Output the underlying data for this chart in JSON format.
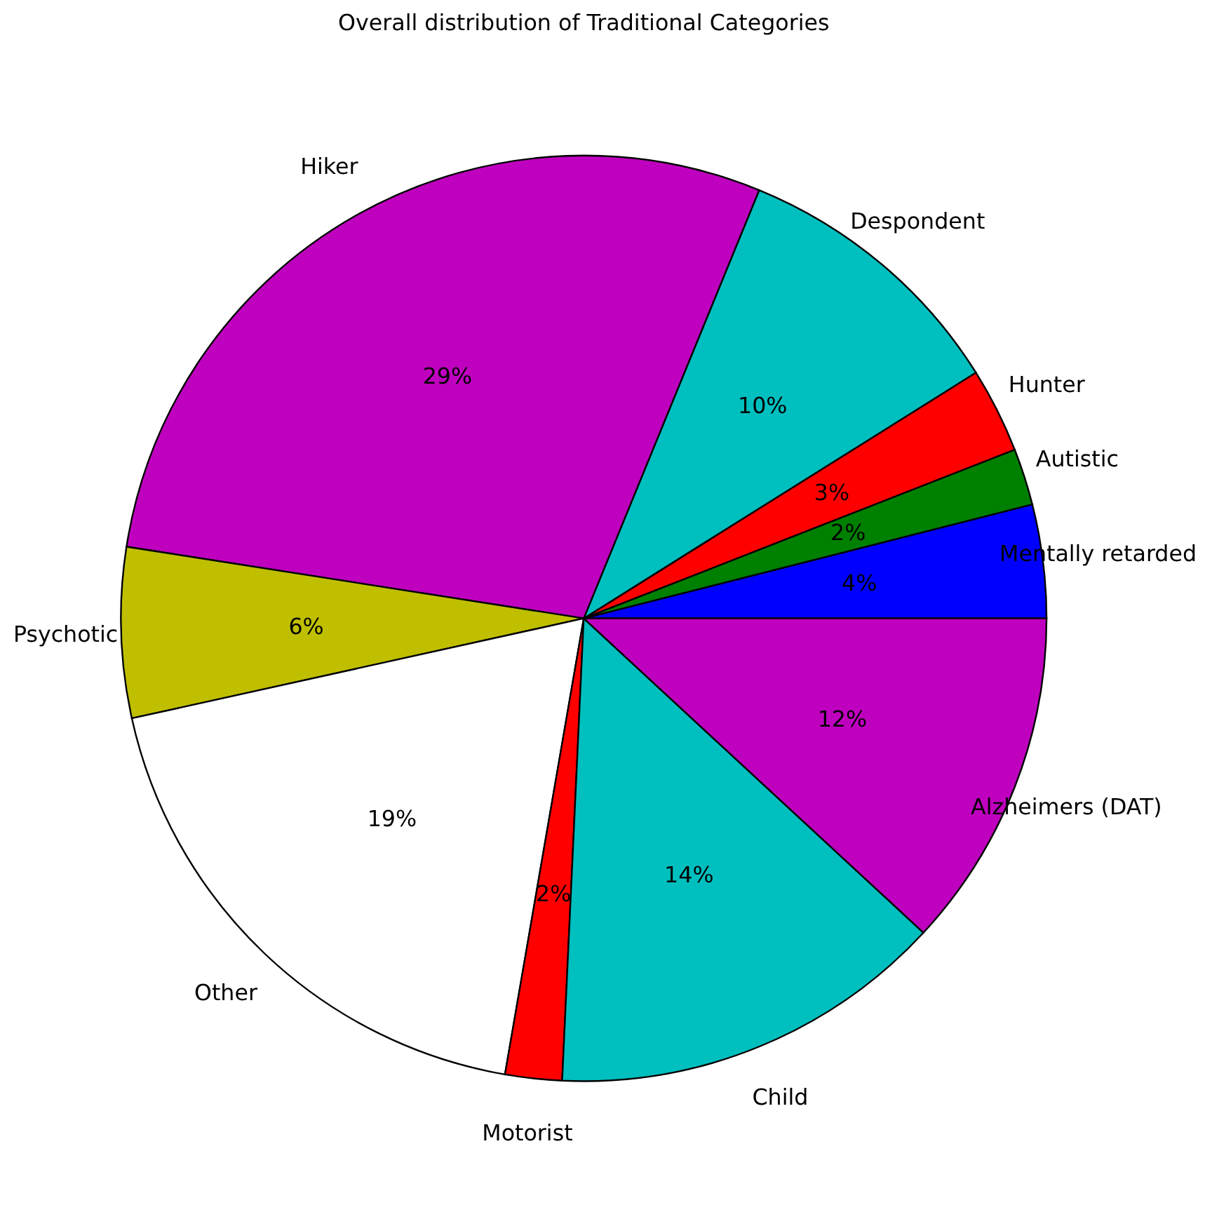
{
  "chart_data": {
    "type": "pie",
    "title": "Overall distribution of Traditional Categories",
    "categories": [
      "Mentally retarded",
      "Autistic",
      "Hunter",
      "Despondent",
      "Hiker",
      "Psychotic",
      "Other",
      "Motorist",
      "Child",
      "Alzheimers (DAT)"
    ],
    "values": [
      4,
      2,
      3,
      10,
      29,
      6,
      19,
      2,
      14,
      12
    ],
    "value_labels": [
      "4%",
      "2%",
      "3%",
      "10%",
      "29%",
      "6%",
      "19%",
      "2%",
      "14%",
      "12%"
    ],
    "colors": [
      "#0000ff",
      "#008000",
      "#ff0000",
      "#00bfbf",
      "#bf00bf",
      "#bfbf00",
      "#ffffff",
      "#ff0000",
      "#00bfbf",
      "#bf00bf"
    ],
    "legend": false
  }
}
